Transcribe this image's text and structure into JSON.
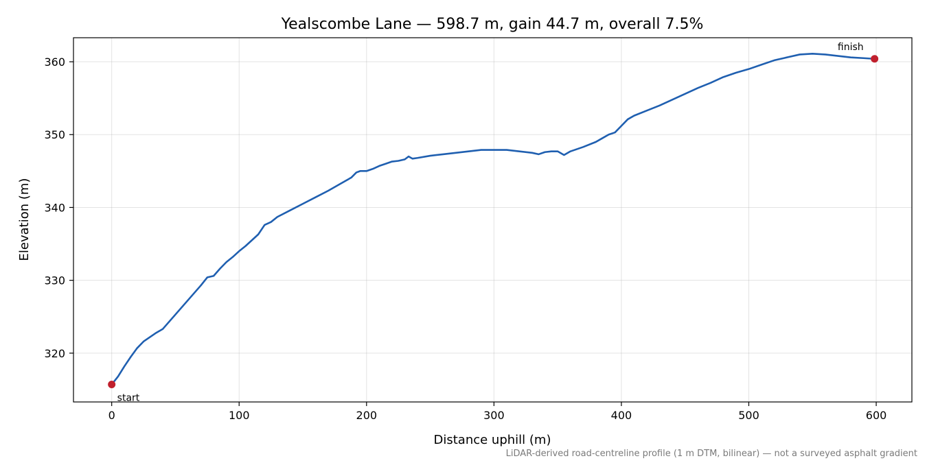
{
  "chart_data": {
    "type": "line",
    "title": "Yealscombe Lane — 598.7 m, gain 44.7 m, overall 7.5%",
    "xlabel": "Distance uphill (m)",
    "ylabel": "Elevation (m)",
    "xlim": [
      -30,
      628
    ],
    "ylim": [
      313.3,
      363.3
    ],
    "xticks": [
      0,
      100,
      200,
      300,
      400,
      500,
      600
    ],
    "yticks": [
      320,
      330,
      340,
      350,
      360
    ],
    "grid": true,
    "line_color": "#1f5fb0",
    "marker_color": "#c0202d",
    "series": [
      {
        "x": [
          0,
          5,
          10,
          15,
          20,
          25,
          30,
          35,
          40,
          45,
          50,
          55,
          60,
          65,
          70,
          75,
          80,
          85,
          90,
          95,
          100,
          105,
          110,
          115,
          120,
          125,
          130,
          140,
          150,
          160,
          170,
          180,
          188,
          192,
          195,
          200,
          205,
          210,
          215,
          220,
          225,
          230,
          233,
          236,
          240,
          250,
          260,
          270,
          280,
          290,
          300,
          310,
          320,
          330,
          335,
          340,
          345,
          350,
          355,
          360,
          370,
          380,
          385,
          390,
          395,
          400,
          405,
          410,
          420,
          430,
          440,
          450,
          460,
          470,
          480,
          490,
          500,
          510,
          520,
          530,
          540,
          550,
          560,
          570,
          580,
          590,
          598.7
        ],
        "y": [
          315.7,
          316.8,
          318.2,
          319.5,
          320.7,
          321.6,
          322.2,
          322.8,
          323.3,
          324.3,
          325.3,
          326.3,
          327.3,
          328.3,
          329.3,
          330.4,
          330.6,
          331.6,
          332.5,
          333.2,
          334.0,
          334.7,
          335.5,
          336.3,
          337.6,
          338.0,
          338.7,
          339.6,
          340.5,
          341.4,
          342.3,
          343.3,
          344.1,
          344.8,
          345.0,
          345.0,
          345.3,
          345.7,
          346.0,
          346.3,
          346.4,
          346.6,
          347.0,
          346.7,
          346.8,
          347.1,
          347.3,
          347.5,
          347.7,
          347.9,
          347.9,
          347.9,
          347.7,
          347.5,
          347.3,
          347.6,
          347.7,
          347.7,
          347.2,
          347.7,
          348.3,
          349.0,
          349.5,
          350.0,
          350.3,
          351.2,
          352.1,
          352.6,
          353.3,
          354.0,
          354.8,
          355.6,
          356.4,
          357.1,
          357.9,
          358.5,
          359.0,
          359.6,
          360.2,
          360.6,
          361.0,
          361.1,
          361.0,
          360.8,
          360.6,
          360.5,
          360.4
        ]
      }
    ],
    "annotations": [
      {
        "label": "start",
        "x": 0,
        "y": 315.7
      },
      {
        "label": "finish",
        "x": 598.7,
        "y": 360.4
      }
    ],
    "footnote": "LiDAR-derived road-centreline profile (1 m DTM, bilinear) — not a surveyed asphalt gradient"
  }
}
